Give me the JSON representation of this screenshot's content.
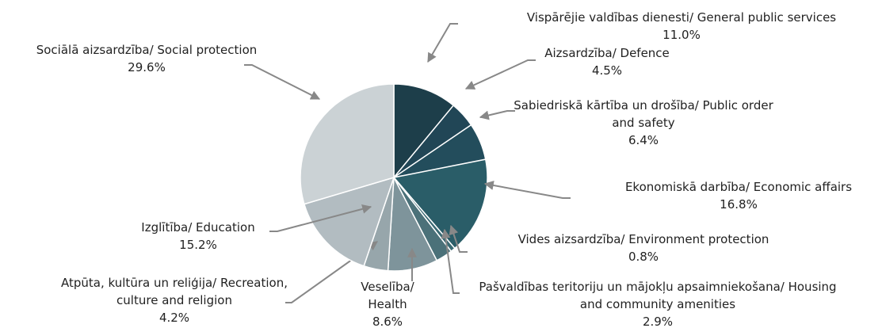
{
  "chart_data": {
    "type": "pie",
    "categories": [
      "Vispārējie valdības dienesti/ General public services",
      "Aizsardzība/ Defence",
      "Sabiedriskā kārtība un drošība/ Public order and safety",
      "Ekonomiskā darbība/ Economic affairs",
      "Vides aizsardzība/ Environment protection",
      "Pašvaldības teritoriju un mājokļu apsaimniekošana/ Housing and community amenities",
      "Veselība/ Health",
      "Atpūta, kultūra un reliģija/ Recreation, culture and religion",
      "Izglītība/ Education",
      "Sociālā aizsardzība/ Social protection"
    ],
    "values": [
      11.0,
      4.5,
      6.4,
      16.8,
      0.8,
      2.9,
      8.6,
      4.2,
      15.2,
      29.6
    ],
    "value_labels": [
      "11.0%",
      "4.5%",
      "6.4%",
      "16.8%",
      "0.8%",
      "2.9%",
      "8.6%",
      "4.2%",
      "15.2%",
      "29.6%"
    ],
    "colors": [
      "#1d3e4a",
      "#214656",
      "#234d5c",
      "#2a5d68",
      "#3a6a73",
      "#4b7179",
      "#7e949b",
      "#97a6ab",
      "#b2bcc1",
      "#cbd2d5"
    ]
  }
}
